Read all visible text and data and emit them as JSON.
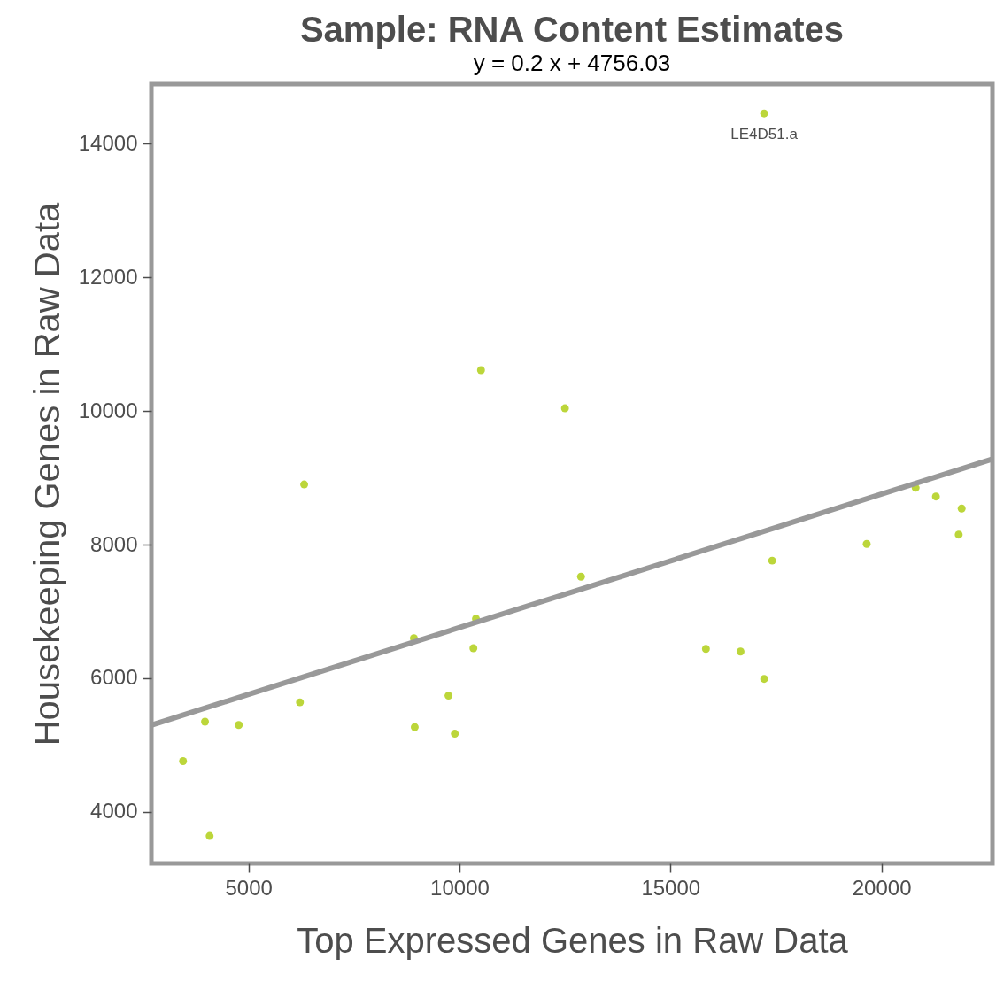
{
  "chart_data": {
    "type": "scatter",
    "title": "Sample: RNA Content Estimates",
    "subtitle": "y = 0.2 x + 4756.03",
    "xlabel": "Top Expressed Genes in Raw Data",
    "ylabel": "Housekeeping Genes in Raw Data",
    "xlim": [
      2700,
      22630
    ],
    "ylim": [
      3230,
      14890
    ],
    "xticks": [
      5000,
      10000,
      15000,
      20000
    ],
    "yticks": [
      4000,
      6000,
      8000,
      10000,
      12000,
      14000
    ],
    "grid": false,
    "series": [
      {
        "color": "#bcd63a",
        "marker": "circle",
        "x": [
          3450,
          3970,
          4080,
          4770,
          6220,
          6320,
          8920,
          8940,
          9740,
          9890,
          10330,
          10390,
          10510,
          12500,
          12880,
          15840,
          16660,
          17220,
          17220,
          17410,
          19650,
          20810,
          21290,
          21830,
          21900
        ],
        "values": [
          4760,
          5350,
          3640,
          5300,
          5640,
          8900,
          6600,
          5270,
          5740,
          5170,
          6450,
          6890,
          10610,
          10040,
          7520,
          6440,
          6400,
          5990,
          14450,
          7760,
          8010,
          8850,
          8720,
          8150,
          8540
        ]
      },
      {
        "type": "line",
        "color": "#999999",
        "line_style": "solid",
        "x": [
          2700,
          22630
        ],
        "values": [
          5300,
          9280
        ]
      }
    ],
    "annotations": [
      {
        "text": "LE4D51.a",
        "x": 17220,
        "y": 14450
      }
    ]
  }
}
